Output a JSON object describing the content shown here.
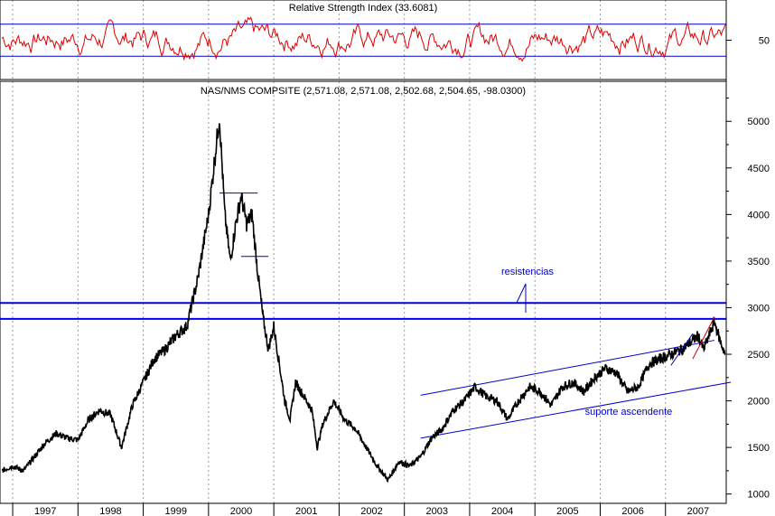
{
  "chart_data": [
    {
      "type": "line",
      "panel": "indicator",
      "title": "Relative Strength Index (33.6081)",
      "ylim": [
        0,
        100
      ],
      "yticks": [
        "50"
      ],
      "reference_lines": [
        70,
        30
      ],
      "series": [
        {
          "color": "#dd0000"
        }
      ],
      "x": [
        "1996-11",
        "2007-12"
      ],
      "oscillation_range": [
        20,
        85
      ],
      "grid": "vertical dotted at year boundaries"
    },
    {
      "type": "line",
      "panel": "price",
      "title": "NAS/NMS COMPSITE (2,571.08, 2,571.08, 2,502.68, 2,504.65, -98.0300)",
      "ylim": [
        900,
        5400
      ],
      "yticks": [
        "1000",
        "1500",
        "2000",
        "2500",
        "3000",
        "3500",
        "4000",
        "4500",
        "5000"
      ],
      "categories": [
        "1997",
        "1998",
        "1999",
        "2000",
        "2001",
        "2002",
        "2003",
        "2004",
        "2005",
        "2006",
        "2007"
      ],
      "series": [
        {
          "color": "#000000",
          "x": [
            "1996-11",
            "1997-01",
            "1997-03",
            "1997-05",
            "1997-07",
            "1997-09",
            "1997-11",
            "1998-01",
            "1998-03",
            "1998-05",
            "1998-07",
            "1998-09",
            "1998-11",
            "1999-01",
            "1999-03",
            "1999-05",
            "1999-07",
            "1999-09",
            "1999-11",
            "2000-01",
            "2000-03",
            "2000-04",
            "2000-05",
            "2000-06",
            "2000-07",
            "2000-08",
            "2000-09",
            "2000-10",
            "2000-11",
            "2000-12",
            "2001-01",
            "2001-02",
            "2001-03",
            "2001-04",
            "2001-05",
            "2001-06",
            "2001-07",
            "2001-08",
            "2001-09",
            "2001-10",
            "2001-12",
            "2002-02",
            "2002-04",
            "2002-06",
            "2002-08",
            "2002-10",
            "2002-12",
            "2003-02",
            "2003-04",
            "2003-06",
            "2003-08",
            "2003-10",
            "2003-12",
            "2004-02",
            "2004-04",
            "2004-06",
            "2004-08",
            "2004-10",
            "2004-12",
            "2005-02",
            "2005-04",
            "2005-06",
            "2005-08",
            "2005-10",
            "2005-12",
            "2006-02",
            "2006-04",
            "2006-06",
            "2006-08",
            "2006-10",
            "2006-12",
            "2007-02",
            "2007-04",
            "2007-06",
            "2007-07",
            "2007-08",
            "2007-10",
            "2007-11",
            "2007-12"
          ],
          "values": [
            1250,
            1300,
            1250,
            1400,
            1550,
            1650,
            1600,
            1580,
            1800,
            1900,
            1850,
            1500,
            1950,
            2200,
            2450,
            2550,
            2700,
            2800,
            3300,
            4000,
            5050,
            4000,
            3500,
            3900,
            4200,
            3900,
            4000,
            3400,
            2900,
            2550,
            2800,
            2400,
            2000,
            1800,
            2200,
            2100,
            2000,
            1900,
            1500,
            1750,
            2000,
            1800,
            1700,
            1500,
            1300,
            1150,
            1350,
            1300,
            1400,
            1600,
            1700,
            1900,
            2000,
            2150,
            2050,
            2000,
            1800,
            2000,
            2150,
            2100,
            1950,
            2150,
            2200,
            2100,
            2250,
            2350,
            2300,
            2100,
            2150,
            2400,
            2450,
            2500,
            2550,
            2650,
            2700,
            2550,
            2850,
            2650,
            2500
          ]
        }
      ],
      "resistance_levels": [
        3050,
        2880
      ],
      "resistance_label": "resistencias",
      "support_label": "suporte ascendente",
      "channel": {
        "upper": {
          "x": [
            "2003-04",
            "2007-10"
          ],
          "y": [
            2060,
            2650
          ]
        },
        "lower": {
          "x": [
            "2003-04",
            "2008-01"
          ],
          "y": [
            1600,
            2200
          ]
        }
      },
      "peak_levels": [
        {
          "x": [
            "2000-03",
            "2000-10"
          ],
          "y": 4230
        },
        {
          "x": [
            "2000-07",
            "2000-12"
          ],
          "y": 3550
        }
      ],
      "grid": "vertical dotted at year boundaries"
    }
  ]
}
